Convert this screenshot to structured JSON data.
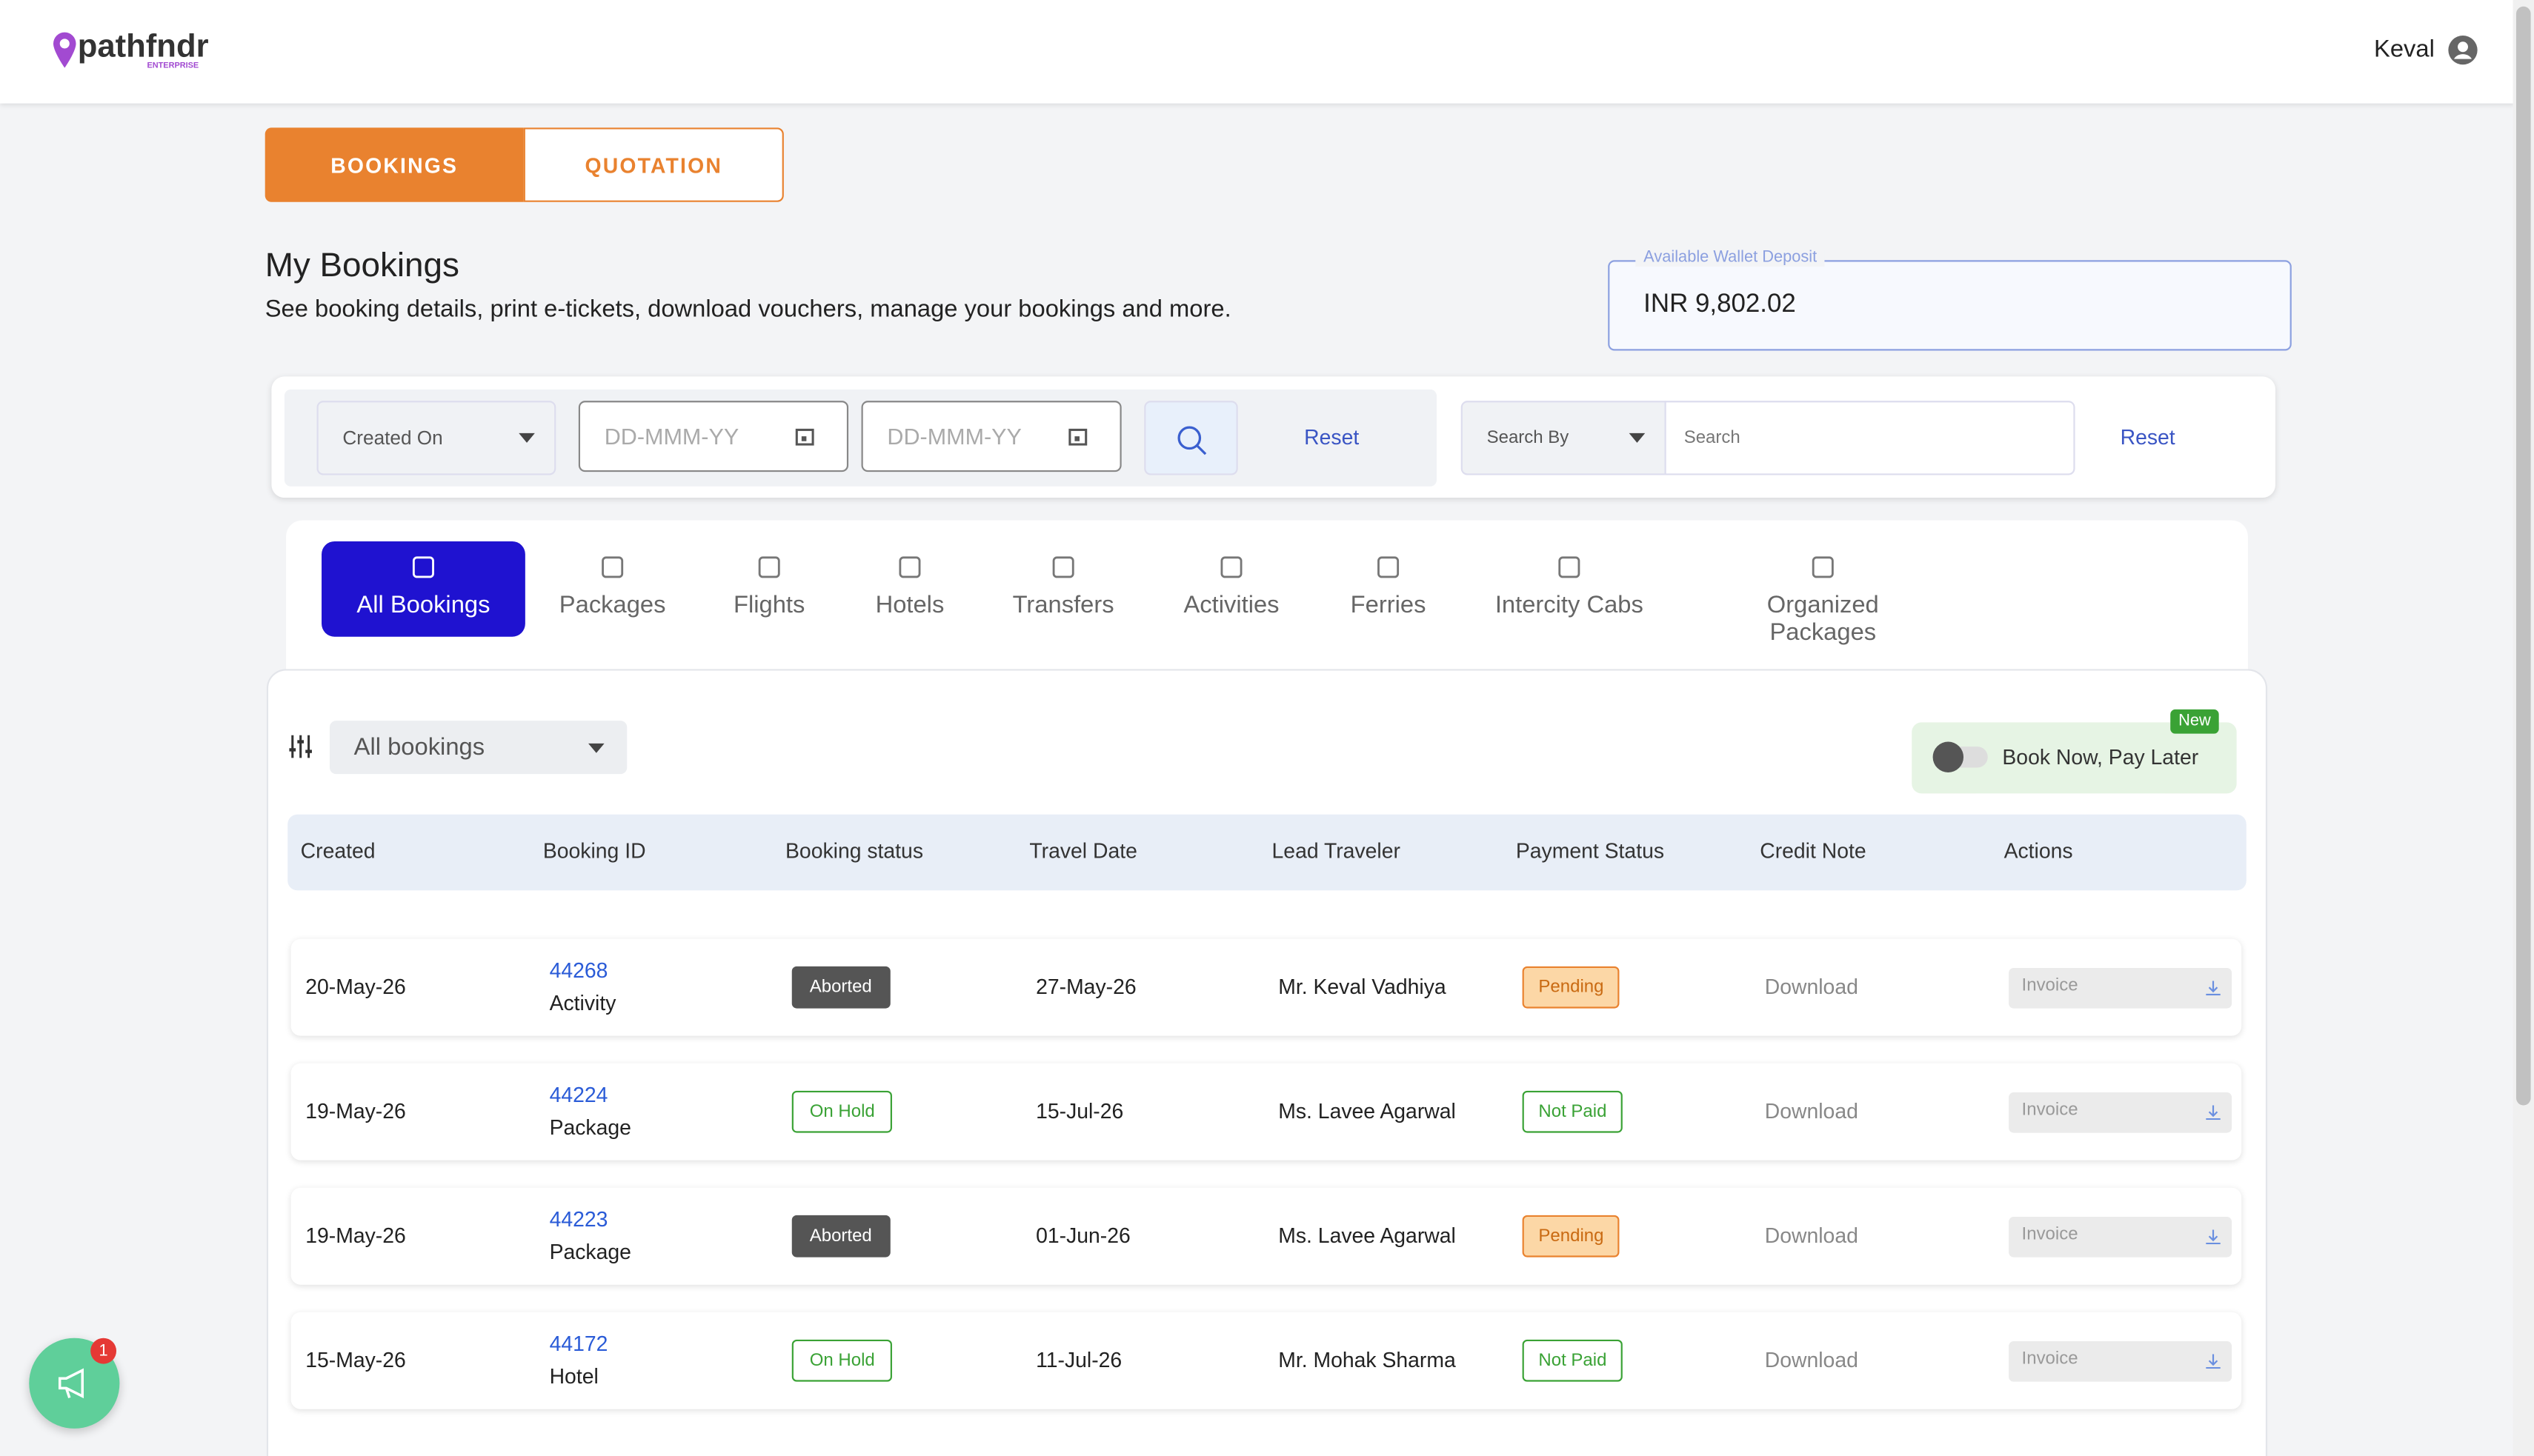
{
  "header": {
    "logo": "pathfndr",
    "logo_sub": "ENTERPRISE",
    "user": "Keval"
  },
  "tabs": [
    "BOOKINGS",
    "QUOTATION"
  ],
  "page": {
    "title": "My Bookings",
    "subtitle": "See booking details, print e-tickets, download vouchers, manage your bookings and more."
  },
  "wallet": {
    "label": "Available Wallet Deposit",
    "amount": "INR 9,802.02"
  },
  "filters": {
    "date_type": "Created On",
    "from_placeholder": "DD-MMM-YY",
    "to_placeholder": "DD-MMM-YY",
    "reset": "Reset",
    "search_by": "Search By",
    "search_placeholder": "Search",
    "search_reset": "Reset"
  },
  "categories": [
    "All Bookings",
    "Packages",
    "Flights",
    "Hotels",
    "Transfers",
    "Activities",
    "Ferries",
    "Intercity Cabs",
    "Organized Packages"
  ],
  "list": {
    "filter": "All bookings",
    "badge": "New",
    "toggle_label": "Book Now, Pay Later"
  },
  "table": {
    "columns": [
      "Created",
      "Booking ID",
      "Booking status",
      "Travel Date",
      "Lead Traveler",
      "Payment Status",
      "Credit Note",
      "Actions"
    ],
    "rows": [
      {
        "created": "20-May-26",
        "id": "44268",
        "kind": "Activity",
        "status": "Aborted",
        "travel": "27-May-26",
        "traveler": "Mr. Keval Vadhiya",
        "payment": "Pending",
        "credit": "Download",
        "action": "Invoice"
      },
      {
        "created": "19-May-26",
        "id": "44224",
        "kind": "Package",
        "status": "On Hold",
        "travel": "15-Jul-26",
        "traveler": "Ms. Lavee Agarwal",
        "payment": "Not Paid",
        "credit": "Download",
        "action": "Invoice"
      },
      {
        "created": "19-May-26",
        "id": "44223",
        "kind": "Package",
        "status": "Aborted",
        "travel": "01-Jun-26",
        "traveler": "Ms. Lavee Agarwal",
        "payment": "Pending",
        "credit": "Download",
        "action": "Invoice"
      },
      {
        "created": "15-May-26",
        "id": "44172",
        "kind": "Hotel",
        "status": "On Hold",
        "travel": "11-Jul-26",
        "traveler": "Mr. Mohak Sharma",
        "payment": "Not Paid",
        "credit": "Download",
        "action": "Invoice"
      }
    ]
  },
  "notification_count": 1
}
